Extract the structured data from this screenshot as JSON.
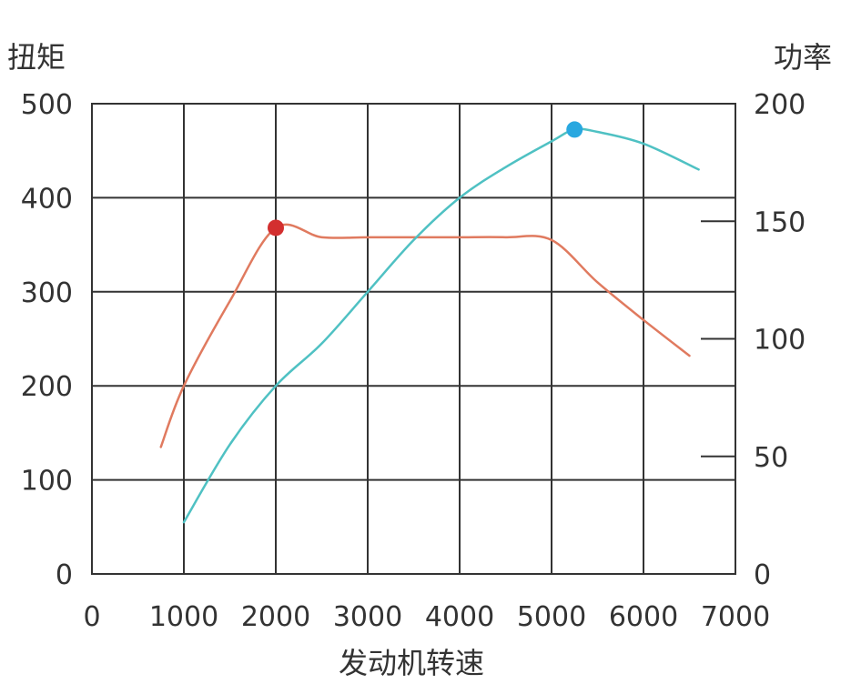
{
  "chart_data": {
    "type": "line",
    "title": "",
    "xlabel": "发动机转速",
    "ylabel_left": "扭矩",
    "ylabel_right": "功率",
    "x_ticks": [
      "0",
      "1000",
      "2000",
      "3000",
      "4000",
      "5000",
      "6000",
      "7000"
    ],
    "y_left_ticks": [
      "0",
      "100",
      "200",
      "300",
      "400",
      "500"
    ],
    "y_right_ticks": [
      "0",
      "50",
      "100",
      "150",
      "200"
    ],
    "xlim": [
      0,
      7000
    ],
    "ylim_left": [
      0,
      500
    ],
    "ylim_right": [
      0,
      200
    ],
    "grid": true,
    "series": [
      {
        "axis": "left",
        "color": "#e07a5f",
        "points": [
          [
            750,
            135
          ],
          [
            1000,
            200
          ],
          [
            1500,
            290
          ],
          [
            2000,
            368
          ],
          [
            2500,
            358
          ],
          [
            3000,
            358
          ],
          [
            3500,
            358
          ],
          [
            4000,
            358
          ],
          [
            4500,
            358
          ],
          [
            5000,
            355
          ],
          [
            5500,
            310
          ],
          [
            6000,
            270
          ],
          [
            6500,
            232
          ]
        ],
        "marker": {
          "x": 2000,
          "y": 368,
          "color": "#d32f2f"
        }
      },
      {
        "axis": "right",
        "color": "#4fc1c3",
        "points": [
          [
            1000,
            22
          ],
          [
            1500,
            55
          ],
          [
            2000,
            80
          ],
          [
            2500,
            98
          ],
          [
            3000,
            120
          ],
          [
            3500,
            142
          ],
          [
            4000,
            160
          ],
          [
            4500,
            173
          ],
          [
            5000,
            184
          ],
          [
            5250,
            189
          ],
          [
            5500,
            188
          ],
          [
            6000,
            183
          ],
          [
            6600,
            172
          ]
        ],
        "marker": {
          "x": 5250,
          "y": 189,
          "color": "#29a8e0"
        }
      }
    ]
  }
}
